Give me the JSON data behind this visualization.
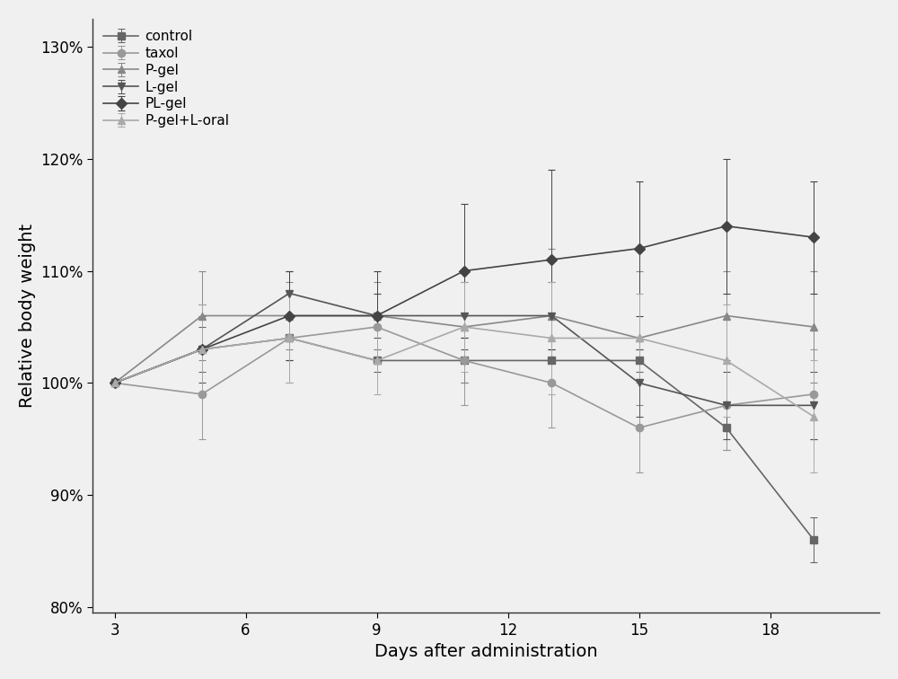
{
  "x": [
    3,
    5,
    7,
    9,
    11,
    13,
    15,
    17,
    19
  ],
  "series": {
    "control": {
      "y": [
        100,
        103,
        104,
        102,
        102,
        102,
        102,
        96,
        86
      ],
      "yerr": [
        0,
        2,
        2,
        1,
        2,
        2,
        1,
        2,
        2
      ],
      "color": "#666666",
      "marker": "s",
      "linestyle": "-"
    },
    "taxol": {
      "y": [
        100,
        99,
        104,
        105,
        102,
        100,
        96,
        98,
        99
      ],
      "yerr": [
        0,
        4,
        4,
        3,
        4,
        4,
        4,
        4,
        4
      ],
      "color": "#999999",
      "marker": "o",
      "linestyle": "-"
    },
    "P-gel": {
      "y": [
        100,
        106,
        106,
        106,
        105,
        106,
        104,
        106,
        105
      ],
      "yerr": [
        0,
        4,
        3,
        3,
        5,
        6,
        6,
        4,
        5
      ],
      "color": "#888888",
      "marker": "^",
      "linestyle": "-"
    },
    "L-gel": {
      "y": [
        100,
        103,
        108,
        106,
        106,
        106,
        100,
        98,
        98
      ],
      "yerr": [
        0,
        3,
        2,
        2,
        3,
        3,
        3,
        3,
        3
      ],
      "color": "#555555",
      "marker": "v",
      "linestyle": "-"
    },
    "PL-gel": {
      "y": [
        100,
        103,
        106,
        106,
        110,
        111,
        112,
        114,
        113
      ],
      "yerr": [
        0,
        4,
        4,
        4,
        6,
        8,
        6,
        6,
        5
      ],
      "color": "#444444",
      "marker": "D",
      "linestyle": "-"
    },
    "P-gel+L-oral": {
      "y": [
        100,
        103,
        104,
        102,
        105,
        104,
        104,
        102,
        97
      ],
      "yerr": [
        0,
        4,
        4,
        3,
        4,
        5,
        4,
        5,
        5
      ],
      "color": "#aaaaaa",
      "marker": "^",
      "linestyle": "-"
    }
  },
  "xlabel": "Days after administration",
  "ylabel": "Relative body weight",
  "legend_order": [
    "control",
    "taxol",
    "P-gel",
    "L-gel",
    "PL-gel",
    "P-gel+L-oral"
  ],
  "label_fontsize": 14,
  "tick_fontsize": 12,
  "legend_fontsize": 11,
  "linewidth": 1.2,
  "markersize": 6,
  "capsize": 3,
  "bg_color": "#f0f0f0"
}
